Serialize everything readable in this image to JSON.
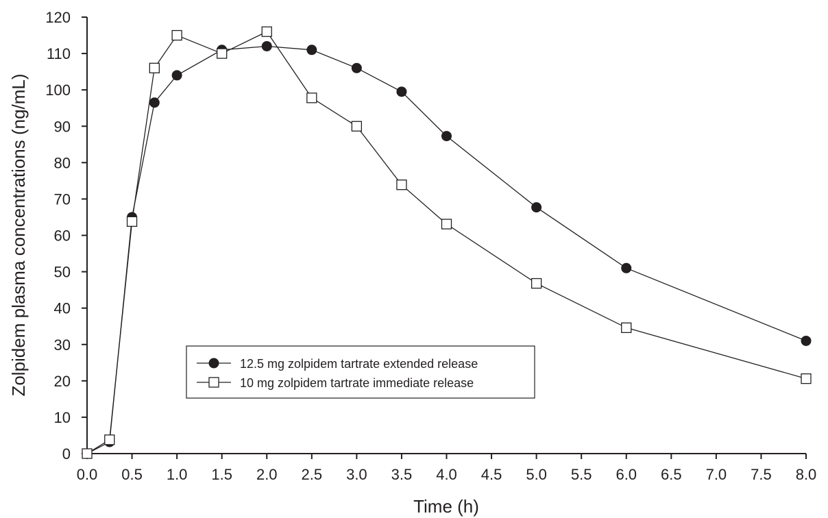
{
  "chart_data": {
    "type": "line",
    "xlabel": "Time (h)",
    "ylabel": "Zolpidem plasma concentrations (ng/mL)",
    "xlim": [
      0,
      8
    ],
    "ylim": [
      0,
      120
    ],
    "x_ticks": [
      "0.0",
      "0.5",
      "1.0",
      "1.5",
      "2.0",
      "2.5",
      "3.0",
      "3.5",
      "4.0",
      "4.5",
      "5.0",
      "5.5",
      "6.0",
      "6.5",
      "7.0",
      "7.5",
      "8.0"
    ],
    "y_ticks": [
      "0",
      "10",
      "20",
      "30",
      "40",
      "50",
      "60",
      "70",
      "80",
      "90",
      "100",
      "110",
      "120"
    ],
    "grid": false,
    "legend_position": "lower-left",
    "series": [
      {
        "name": "12.5 mg zolpidem tartrate extended release",
        "marker": "filled-circle",
        "color": "#231f20",
        "x": [
          0,
          0.25,
          0.5,
          0.75,
          1.0,
          1.5,
          2.0,
          2.5,
          3.0,
          3.5,
          4.0,
          5.0,
          6.0,
          8.0
        ],
        "y": [
          0,
          3.2,
          65,
          96.5,
          104,
          111,
          112,
          111,
          106,
          99.5,
          87.3,
          67.7,
          51,
          31
        ]
      },
      {
        "name": "10 mg zolpidem tartrate immediate release",
        "marker": "open-square",
        "color": "#231f20",
        "x": [
          0,
          0.25,
          0.5,
          0.75,
          1.0,
          1.5,
          2.0,
          2.5,
          3.0,
          3.5,
          4.0,
          5.0,
          6.0,
          8.0
        ],
        "y": [
          0,
          3.8,
          63.8,
          106,
          115,
          110,
          116,
          97.8,
          90,
          73.9,
          63.1,
          46.8,
          34.6,
          20.6
        ]
      }
    ]
  }
}
